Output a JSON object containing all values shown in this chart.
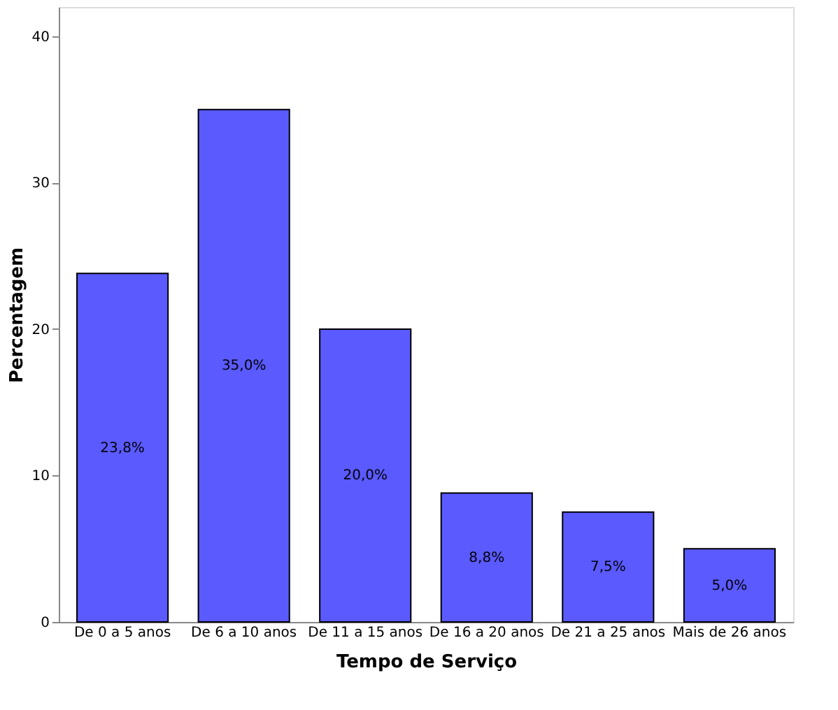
{
  "chart_data": {
    "type": "bar",
    "xlabel": "Tempo de Serviço",
    "ylabel": "Percentagem",
    "categories": [
      "De 0 a 5 anos",
      "De 6 a 10 anos",
      "De 11 a 15 anos",
      "De 16 a 20 anos",
      "De 21 a 25 anos",
      "Mais de  26 anos"
    ],
    "values": [
      23.8,
      35.0,
      20.0,
      8.8,
      7.5,
      5.0
    ],
    "value_labels": [
      "23,8%",
      "35,0%",
      "20,0%",
      "8,8%",
      "7,5%",
      "5,0%"
    ],
    "color": "#5a5aff",
    "ylim": [
      0,
      42
    ],
    "yticks": [
      0,
      10,
      20,
      30,
      40
    ],
    "grid": false
  }
}
